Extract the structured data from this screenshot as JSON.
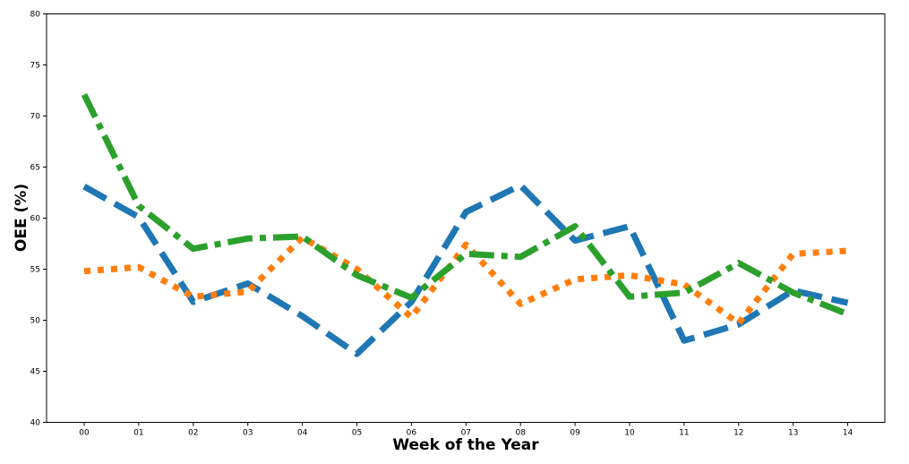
{
  "chart_data": {
    "type": "line",
    "title": "",
    "xlabel": "Week of the Year",
    "ylabel": "OEE (%)",
    "categories": [
      "00",
      "01",
      "02",
      "03",
      "04",
      "05",
      "06",
      "07",
      "08",
      "09",
      "10",
      "11",
      "12",
      "13",
      "14"
    ],
    "ylim": [
      40,
      80
    ],
    "yticks": [
      40,
      45,
      50,
      55,
      60,
      65,
      70,
      75,
      80
    ],
    "grid": false,
    "legend": "none",
    "series": [
      {
        "color": "#1f77b4",
        "linestyle": "dashed",
        "values": [
          63.1,
          60.1,
          51.8,
          53.6,
          50.4,
          46.7,
          51.8,
          60.6,
          63.2,
          57.8,
          59.2,
          48.0,
          49.6,
          52.9,
          51.7
        ]
      },
      {
        "color": "#ff7f0e",
        "linestyle": "dotted",
        "values": [
          54.8,
          55.2,
          52.3,
          52.8,
          58.1,
          55.0,
          50.3,
          57.4,
          51.6,
          54.0,
          54.4,
          53.5,
          49.7,
          56.5,
          56.8
        ]
      },
      {
        "color": "#2ca02c",
        "linestyle": "dashdot",
        "values": [
          72.1,
          61.2,
          57.0,
          58.0,
          58.2,
          54.4,
          52.2,
          56.5,
          56.2,
          59.2,
          52.3,
          52.7,
          55.6,
          52.7,
          50.6
        ]
      }
    ]
  }
}
